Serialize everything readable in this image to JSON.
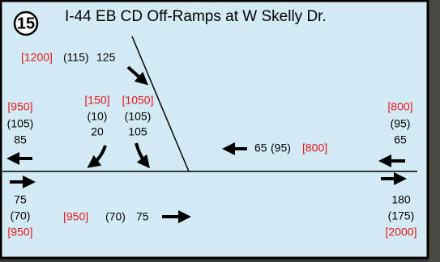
{
  "badge": "15",
  "title": "I-44 EB CD Off-Ramps at W Skelly Dr.",
  "volumes": [
    {
      "bracket": "[1200]",
      "paren": "(115)",
      "plain": "125"
    },
    {
      "bracket": "[950]",
      "paren": "(105)",
      "plain": "85"
    },
    {
      "bracket": "[150]",
      "paren": "(10)",
      "plain": "20"
    },
    {
      "bracket": "[1050]",
      "paren": "(105)",
      "plain": "105"
    },
    {
      "bracket": "[800]",
      "paren": "(95)",
      "plain": "65"
    },
    {
      "bracket": "[800]",
      "paren": "(95)",
      "plain": "65"
    },
    {
      "bracket": "[950]",
      "paren": "(70)",
      "plain": "75"
    },
    {
      "bracket": "[950]",
      "paren": "(70)",
      "plain": "75"
    },
    {
      "bracket": "[2000]",
      "paren": "(175)",
      "plain": "180"
    }
  ]
}
